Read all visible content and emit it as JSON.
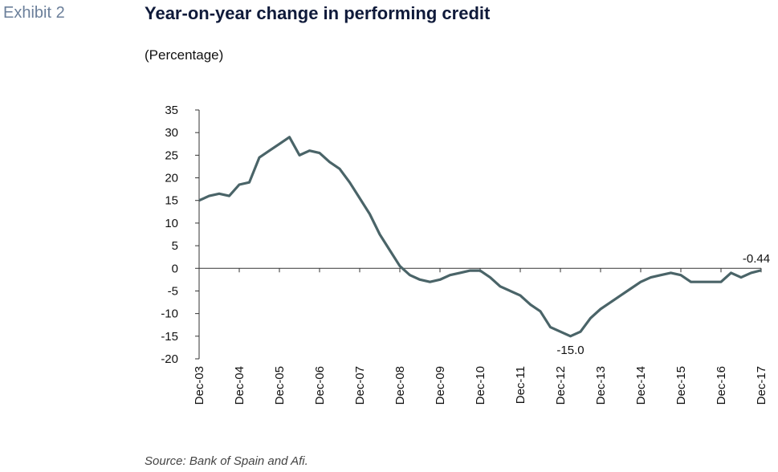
{
  "exhibit": "Exhibit 2",
  "source": "Source: Bank of Spain and Afi.",
  "chart_data": {
    "type": "line",
    "title": "Year-on-year change in performing credit",
    "subtitle": "(Percentage)",
    "categories": [
      "Dec-03",
      null,
      null,
      null,
      "Dec-04",
      null,
      null,
      null,
      "Dec-05",
      null,
      null,
      null,
      "Dec-06",
      null,
      null,
      null,
      "Dec-07",
      null,
      null,
      null,
      "Dec-08",
      null,
      null,
      null,
      "Dec-09",
      null,
      null,
      null,
      "Dec-10",
      null,
      null,
      null,
      "Dec-11",
      null,
      null,
      null,
      "Dec-12",
      null,
      null,
      null,
      "Dec-13",
      null,
      null,
      null,
      "Dec-14",
      null,
      null,
      null,
      "Dec-15",
      null,
      null,
      null,
      "Dec-16",
      null,
      null,
      null,
      "Dec-17"
    ],
    "series": [
      {
        "name": "Performing credit",
        "color": "#4a6468",
        "values": [
          15,
          16,
          16.5,
          16,
          18.5,
          19,
          24.5,
          26,
          27.5,
          29,
          25,
          26,
          25.5,
          23.5,
          22,
          19,
          15.5,
          12,
          7.5,
          4,
          0.5,
          -1.5,
          -2.5,
          -3,
          -2.5,
          -1.5,
          -1,
          -0.5,
          -0.5,
          -2,
          -4,
          -5,
          -6,
          -8,
          -9.5,
          -13,
          -14,
          -15,
          -14,
          -11,
          -9,
          -7.5,
          -6,
          -4.5,
          -3,
          -2,
          -1.5,
          -1,
          -1.5,
          -3,
          -3,
          -3,
          -3,
          -1,
          -2,
          -1,
          -0.44
        ],
        "value_labels": [
          null,
          null,
          null,
          null,
          null,
          null,
          null,
          null,
          null,
          null,
          null,
          null,
          null,
          null,
          null,
          null,
          null,
          null,
          null,
          null,
          null,
          null,
          null,
          null,
          null,
          null,
          null,
          null,
          null,
          null,
          null,
          null,
          null,
          null,
          null,
          null,
          null,
          "-15.0",
          null,
          null,
          null,
          null,
          null,
          null,
          null,
          null,
          null,
          null,
          null,
          null,
          null,
          null,
          null,
          null,
          null,
          null,
          "-0.44"
        ]
      }
    ],
    "ylim": [
      -20,
      35
    ],
    "yticks": [
      -20,
      -15,
      -10,
      -5,
      0,
      5,
      10,
      15,
      20,
      25,
      30,
      35
    ]
  }
}
